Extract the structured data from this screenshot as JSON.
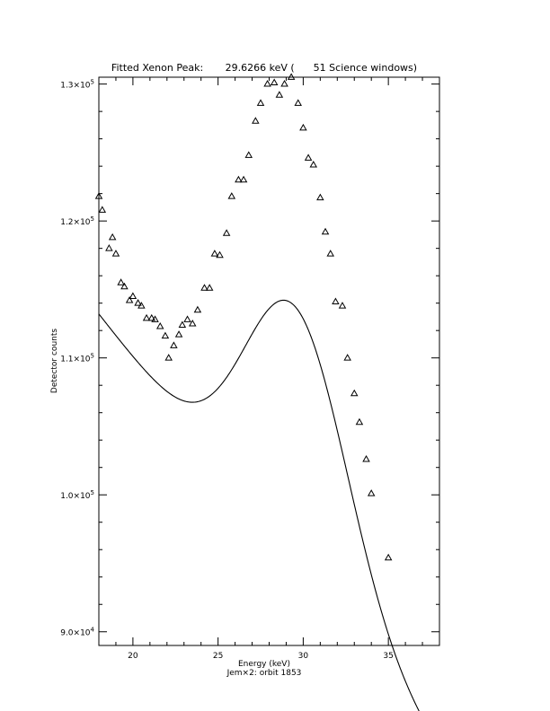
{
  "chart_data": {
    "type": "scatter",
    "title": "Fitted Xenon Peak:       29.6266 keV (      51 Science windows)",
    "xlabel": "Energy (keV)",
    "caption": "Jem×2: orbit 1853",
    "ylabel": "Detector counts",
    "xlim": [
      18,
      38
    ],
    "ylim": [
      89000,
      130500
    ],
    "x_ticks": [
      20,
      25,
      30,
      35
    ],
    "x_tick_labels": [
      "20",
      "25",
      "30",
      "35"
    ],
    "y_ticks": [
      90000,
      100000,
      110000,
      120000,
      130000
    ],
    "y_tick_labels": [
      {
        "mant": "9.0×10",
        "exp": "4"
      },
      {
        "mant": "1.0×10",
        "exp": "5"
      },
      {
        "mant": "1.1×10",
        "exp": "5"
      },
      {
        "mant": "1.2×10",
        "exp": "5"
      },
      {
        "mant": "1.3×10",
        "exp": "5"
      }
    ],
    "series": [
      {
        "marker": "triangle",
        "points": [
          [
            18.0,
            121800
          ],
          [
            18.2,
            120800
          ],
          [
            18.6,
            118000
          ],
          [
            18.8,
            118800
          ],
          [
            19.0,
            117600
          ],
          [
            19.3,
            115500
          ],
          [
            19.5,
            115200
          ],
          [
            19.8,
            114200
          ],
          [
            20.0,
            114500
          ],
          [
            20.3,
            114000
          ],
          [
            20.5,
            113800
          ],
          [
            20.8,
            112900
          ],
          [
            21.1,
            112900
          ],
          [
            21.3,
            112800
          ],
          [
            21.6,
            112300
          ],
          [
            21.9,
            111600
          ],
          [
            22.1,
            110000
          ],
          [
            22.4,
            110900
          ],
          [
            22.7,
            111700
          ],
          [
            22.9,
            112400
          ],
          [
            23.2,
            112800
          ],
          [
            23.5,
            112500
          ],
          [
            23.8,
            113500
          ],
          [
            24.2,
            115100
          ],
          [
            24.5,
            115100
          ],
          [
            24.8,
            117600
          ],
          [
            25.1,
            117500
          ],
          [
            25.5,
            119100
          ],
          [
            25.8,
            121800
          ],
          [
            26.2,
            123000
          ],
          [
            26.5,
            123000
          ],
          [
            26.8,
            124800
          ],
          [
            27.2,
            127300
          ],
          [
            27.5,
            128600
          ],
          [
            27.9,
            130000
          ],
          [
            28.3,
            130100
          ],
          [
            28.6,
            129200
          ],
          [
            28.9,
            130000
          ],
          [
            29.3,
            130500
          ],
          [
            29.7,
            128600
          ],
          [
            30.0,
            126800
          ],
          [
            30.3,
            124600
          ],
          [
            30.6,
            124100
          ],
          [
            31.0,
            121700
          ],
          [
            31.3,
            119200
          ],
          [
            31.6,
            117600
          ],
          [
            31.9,
            114100
          ],
          [
            32.3,
            113800
          ],
          [
            32.6,
            110000
          ],
          [
            33.0,
            107400
          ],
          [
            33.3,
            105300
          ],
          [
            33.7,
            102600
          ],
          [
            34.0,
            100100
          ],
          [
            35.0,
            95400
          ]
        ]
      },
      {
        "marker": "none",
        "fit": {
          "baseline": [
            142000,
            -1600
          ],
          "peak_center": 29.6266,
          "peak_amplitude": 19000,
          "sigma": 3.0,
          "x_range": [
            18.0,
            37.0
          ]
        }
      }
    ],
    "grid": false,
    "legend": "none"
  }
}
